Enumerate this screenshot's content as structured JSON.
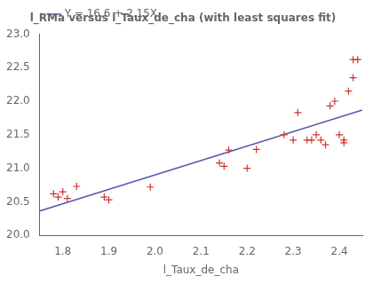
{
  "chart_data": {
    "type": "scatter",
    "title": "l_RMa versus l_Taux_de_cha (with least squares fit)",
    "xlabel": "l_Taux_de_cha",
    "xlim": [
      1.75,
      2.45
    ],
    "ylim": [
      20.0,
      23.0
    ],
    "xticks": [
      1.8,
      1.9,
      {
        "value": 2.0,
        "label": "2.0"
      },
      2.1,
      2.2,
      2.3,
      2.4
    ],
    "yticks": [
      {
        "value": 20.0,
        "label": "20.0"
      },
      20.5,
      {
        "value": 21.0,
        "label": "21.0"
      },
      21.5,
      {
        "value": 22.0,
        "label": "22.0"
      },
      22.5,
      {
        "value": 23.0,
        "label": "23.0"
      }
    ],
    "grid": false,
    "legend": "upper left",
    "series": [
      {
        "type": "scatter",
        "color": "#cc3333",
        "marker": "plus",
        "x": [
          1.78,
          1.79,
          1.8,
          1.81,
          1.83,
          1.89,
          1.9,
          1.99,
          2.14,
          2.15,
          2.16,
          2.2,
          2.22,
          2.28,
          2.3,
          2.31,
          2.33,
          2.34,
          2.35,
          2.36,
          2.37,
          2.38,
          2.39,
          2.4,
          2.41,
          2.41,
          2.42,
          2.43,
          2.43,
          2.44
        ],
        "values": [
          20.62,
          20.57,
          20.65,
          20.55,
          20.73,
          20.57,
          20.53,
          20.72,
          21.08,
          21.03,
          21.27,
          21.0,
          21.28,
          21.5,
          21.42,
          21.83,
          21.42,
          21.42,
          21.5,
          21.42,
          21.35,
          21.93,
          22.0,
          21.5,
          21.38,
          21.42,
          22.15,
          22.35,
          22.62,
          22.62
        ]
      },
      {
        "name": "Y = 16.6 + 2.15X",
        "type": "line",
        "color": "#5555aa",
        "line_style": "solid",
        "x": [
          1.75,
          2.45
        ],
        "values": [
          20.3625,
          21.8675
        ]
      }
    ]
  }
}
